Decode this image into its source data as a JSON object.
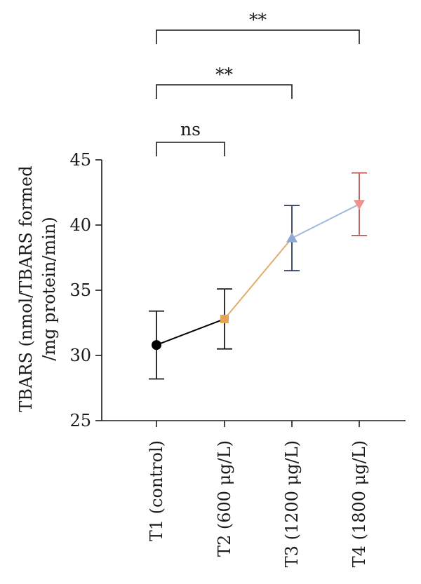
{
  "chart_data": {
    "type": "line",
    "title": "",
    "xlabel": "",
    "ylabel_lines": [
      "TBARS (nmol/TBARS formed",
      "/mg protein/min)"
    ],
    "ylim": [
      25,
      45
    ],
    "yticks": [
      25,
      30,
      35,
      40,
      45
    ],
    "categories": [
      "T1 (control)",
      "T2 (600 μg/L)",
      "T3 (1200 μg/L)",
      "T4 (1800 μg/L)"
    ],
    "values": [
      30.8,
      32.8,
      39.0,
      41.6
    ],
    "errors": [
      2.6,
      2.3,
      2.5,
      2.4
    ],
    "markers": [
      "circle",
      "square",
      "triangle-up",
      "triangle-down"
    ],
    "point_colors": [
      "#000000",
      "#e7a457",
      "#8fa9d4",
      "#f1908d"
    ],
    "errorbar_colors": [
      "#1a1a1a",
      "#1a1a1a",
      "#2f3a5a",
      "#b35a52"
    ],
    "segment_colors": [
      "#000000",
      "#e3ab6e",
      "#a3b8d9"
    ],
    "grid": false,
    "legend": "none",
    "significance": [
      {
        "from": 0,
        "to": 1,
        "label": "ns"
      },
      {
        "from": 0,
        "to": 2,
        "label": "**"
      },
      {
        "from": 0,
        "to": 3,
        "label": "**"
      }
    ]
  }
}
